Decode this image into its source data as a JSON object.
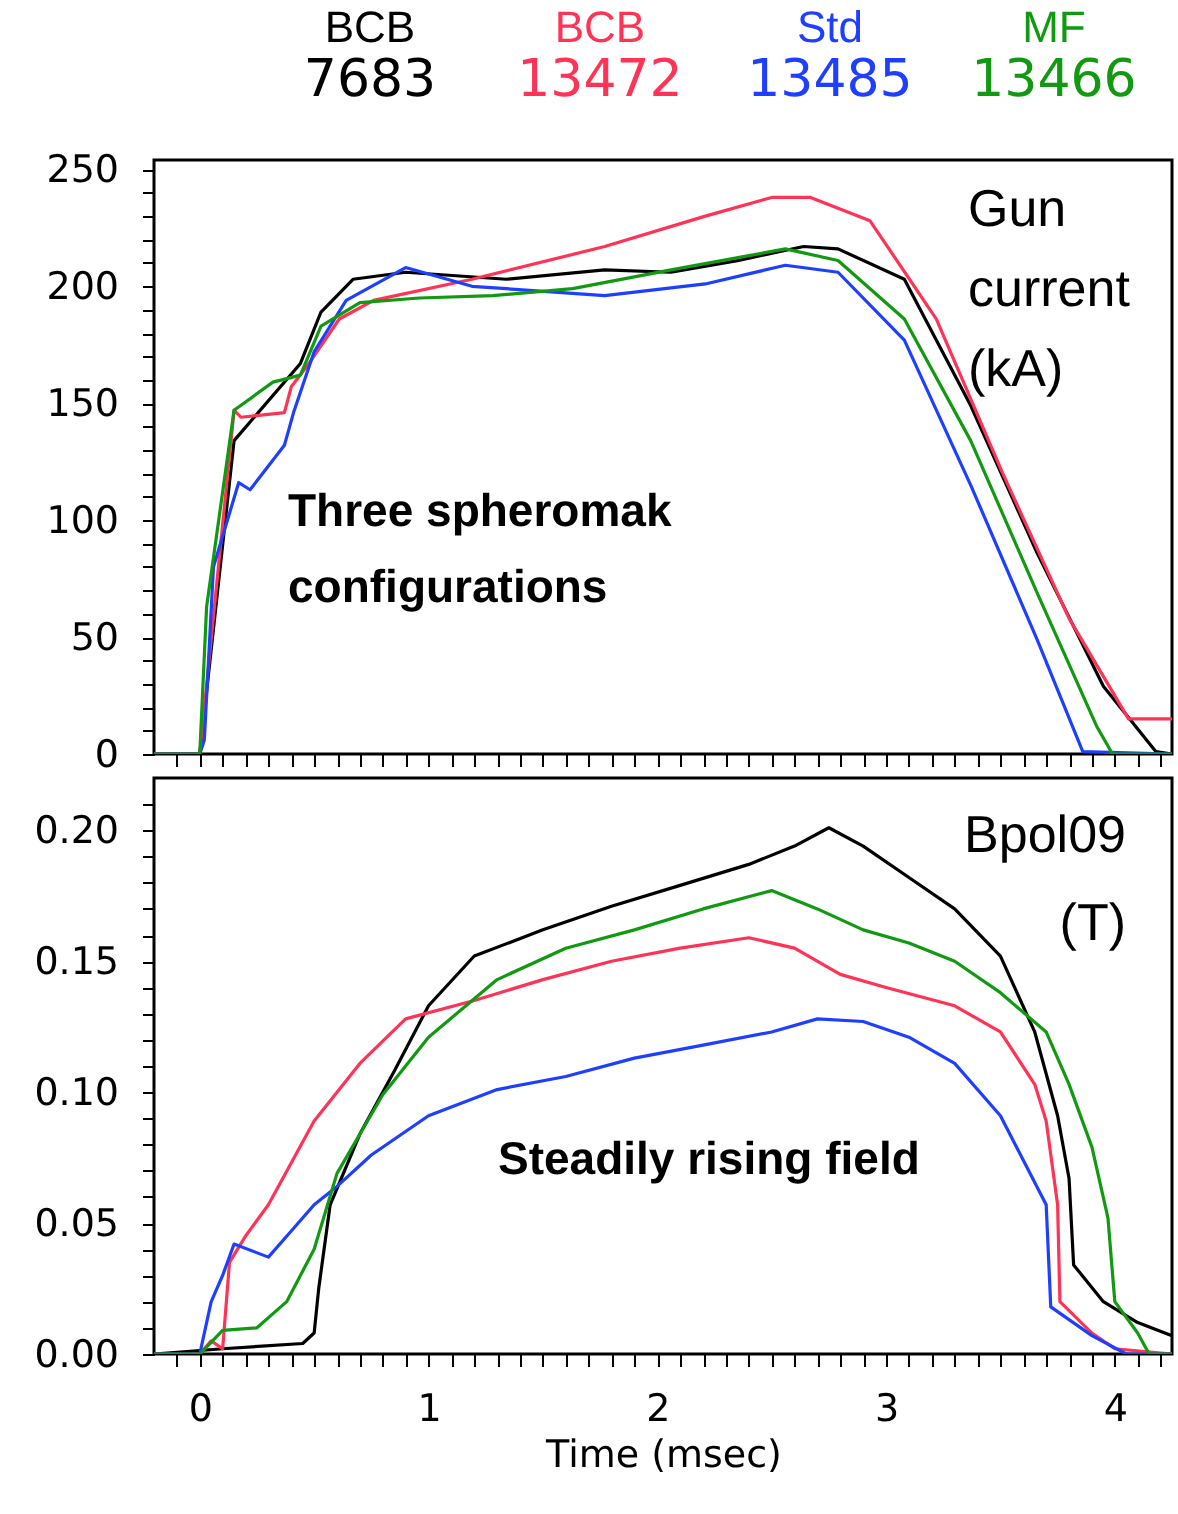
{
  "chart_data": [
    {
      "type": "line",
      "annotations": [
        "Gun\ncurrent\n(kA)",
        "Three spheromak\nconfigurations"
      ],
      "xlim": [
        -0.2,
        4.25
      ],
      "ylim": [
        0,
        254
      ],
      "tick_labels": "y",
      "line_style": "solid",
      "xticks": [
        {
          "value": -0.1,
          "label": null
        },
        {
          "value": 0,
          "label": null
        },
        {
          "value": 0.1,
          "label": null
        },
        {
          "value": 0.2,
          "label": null
        },
        {
          "value": 0.3,
          "label": null
        },
        {
          "value": 0.4,
          "label": null
        },
        {
          "value": 0.5,
          "label": null
        },
        {
          "value": 0.6,
          "label": null
        },
        {
          "value": 0.7,
          "label": null
        },
        {
          "value": 0.8,
          "label": null
        },
        {
          "value": 0.9,
          "label": null
        },
        {
          "value": 1,
          "label": null
        },
        {
          "value": 1.1,
          "label": null
        },
        {
          "value": 1.2,
          "label": null
        },
        {
          "value": 1.3,
          "label": null
        },
        {
          "value": 1.4,
          "label": null
        },
        {
          "value": 1.5,
          "label": null
        },
        {
          "value": 1.6,
          "label": null
        },
        {
          "value": 1.7,
          "label": null
        },
        {
          "value": 1.8,
          "label": null
        },
        {
          "value": 1.9,
          "label": null
        },
        {
          "value": 2,
          "label": null
        },
        {
          "value": 2.1,
          "label": null
        },
        {
          "value": 2.2,
          "label": null
        },
        {
          "value": 2.3,
          "label": null
        },
        {
          "value": 2.4,
          "label": null
        },
        {
          "value": 2.5,
          "label": null
        },
        {
          "value": 2.6,
          "label": null
        },
        {
          "value": 2.7,
          "label": null
        },
        {
          "value": 2.8,
          "label": null
        },
        {
          "value": 2.9,
          "label": null
        },
        {
          "value": 3,
          "label": null
        },
        {
          "value": 3.1,
          "label": null
        },
        {
          "value": 3.2,
          "label": null
        },
        {
          "value": 3.3,
          "label": null
        },
        {
          "value": 3.4,
          "label": null
        },
        {
          "value": 3.5,
          "label": null
        },
        {
          "value": 3.6,
          "label": null
        },
        {
          "value": 3.7,
          "label": null
        },
        {
          "value": 3.8,
          "label": null
        },
        {
          "value": 3.9,
          "label": null
        },
        {
          "value": 4,
          "label": null
        },
        {
          "value": 4.1,
          "label": null
        },
        {
          "value": 4.2,
          "label": null
        }
      ],
      "yticks": [
        0,
        {
          "value": 10,
          "label": null
        },
        {
          "value": 20,
          "label": null
        },
        {
          "value": 30,
          "label": null
        },
        {
          "value": 40,
          "label": null
        },
        50,
        {
          "value": 60,
          "label": null
        },
        {
          "value": 70,
          "label": null
        },
        {
          "value": 80,
          "label": null
        },
        {
          "value": 90,
          "label": null
        },
        100,
        {
          "value": 110,
          "label": null
        },
        {
          "value": 120,
          "label": null
        },
        {
          "value": 130,
          "label": null
        },
        {
          "value": 140,
          "label": null
        },
        150,
        {
          "value": 160,
          "label": null
        },
        {
          "value": 170,
          "label": null
        },
        {
          "value": 180,
          "label": null
        },
        {
          "value": 190,
          "label": null
        },
        200,
        {
          "value": 210,
          "label": null
        },
        {
          "value": 220,
          "label": null
        },
        {
          "value": 230,
          "label": null
        },
        {
          "value": 240,
          "label": null
        },
        250
      ],
      "series": [
        {
          "name": "BCB 7683",
          "color": "#000000",
          "x": [
            -0.2,
            0,
            0.15,
            0.44,
            0.53,
            0.67,
            0.9,
            1.34,
            1.77,
            2.06,
            2.35,
            2.64,
            2.79,
            3.08,
            3.37,
            3.66,
            3.95,
            4.18,
            4.25
          ],
          "values": [
            0,
            0,
            134,
            167,
            189,
            203,
            206,
            203,
            207,
            206,
            211,
            217,
            216,
            203,
            149,
            86,
            29,
            1,
            0
          ]
        },
        {
          "name": "BCB 13472",
          "color": "#ff3355",
          "x": [
            -0.2,
            0,
            0.15,
            0.18,
            0.37,
            0.4,
            0.47,
            0.61,
            0.76,
            1.19,
            1.77,
            2.21,
            2.5,
            2.67,
            2.93,
            3.22,
            3.51,
            3.8,
            4.06,
            4.25
          ],
          "values": [
            0,
            0,
            147,
            144,
            146,
            157,
            166,
            186,
            194,
            203,
            217,
            230,
            238,
            238,
            228,
            186,
            120,
            58,
            15,
            15
          ]
        },
        {
          "name": "Std 13485",
          "color": "#1f3fff",
          "x": [
            -0.2,
            0,
            0.02,
            0.06,
            0.17,
            0.22,
            0.37,
            0.41,
            0.5,
            0.64,
            0.9,
            1.19,
            1.77,
            2.21,
            2.56,
            2.79,
            3.08,
            3.37,
            3.66,
            3.86,
            4.25
          ],
          "values": [
            0,
            0,
            6,
            80,
            116,
            113,
            132,
            146,
            172,
            194,
            208,
            200,
            196,
            201,
            209,
            206,
            177,
            115,
            49,
            1,
            0
          ]
        },
        {
          "name": "MF 13466",
          "color": "#119911",
          "x": [
            -0.2,
            0,
            0.03,
            0.15,
            0.32,
            0.44,
            0.53,
            0.7,
            0.96,
            1.28,
            1.63,
            2.06,
            2.56,
            2.79,
            3.08,
            3.37,
            3.66,
            3.92,
            3.99,
            4.25
          ],
          "values": [
            0,
            0,
            63,
            147,
            159,
            162,
            183,
            193,
            195,
            196,
            199,
            207,
            216,
            211,
            186,
            134,
            69,
            12,
            0,
            0
          ]
        }
      ]
    },
    {
      "type": "line",
      "annotations": [
        "Bpol09\n(T)",
        "Steadily rising field"
      ],
      "xlabel": "Time (msec)",
      "xlim": [
        -0.2,
        4.25
      ],
      "ylim": [
        0,
        0.22
      ],
      "line_style": "solid",
      "xticks": [
        {
          "value": -0.1,
          "label": null
        },
        {
          "value": 0,
          "label": "0"
        },
        {
          "value": 0.1,
          "label": null
        },
        {
          "value": 0.2,
          "label": null
        },
        {
          "value": 0.3,
          "label": null
        },
        {
          "value": 0.4,
          "label": null
        },
        {
          "value": 0.5,
          "label": null
        },
        {
          "value": 0.6,
          "label": null
        },
        {
          "value": 0.7,
          "label": null
        },
        {
          "value": 0.8,
          "label": null
        },
        {
          "value": 0.9,
          "label": null
        },
        {
          "value": 1,
          "label": "1"
        },
        {
          "value": 1.1,
          "label": null
        },
        {
          "value": 1.2,
          "label": null
        },
        {
          "value": 1.3,
          "label": null
        },
        {
          "value": 1.4,
          "label": null
        },
        {
          "value": 1.5,
          "label": null
        },
        {
          "value": 1.6,
          "label": null
        },
        {
          "value": 1.7,
          "label": null
        },
        {
          "value": 1.8,
          "label": null
        },
        {
          "value": 1.9,
          "label": null
        },
        {
          "value": 2,
          "label": "2"
        },
        {
          "value": 2.1,
          "label": null
        },
        {
          "value": 2.2,
          "label": null
        },
        {
          "value": 2.3,
          "label": null
        },
        {
          "value": 2.4,
          "label": null
        },
        {
          "value": 2.5,
          "label": null
        },
        {
          "value": 2.6,
          "label": null
        },
        {
          "value": 2.7,
          "label": null
        },
        {
          "value": 2.8,
          "label": null
        },
        {
          "value": 2.9,
          "label": null
        },
        {
          "value": 3,
          "label": "3"
        },
        {
          "value": 3.1,
          "label": null
        },
        {
          "value": 3.2,
          "label": null
        },
        {
          "value": 3.3,
          "label": null
        },
        {
          "value": 3.4,
          "label": null
        },
        {
          "value": 3.5,
          "label": null
        },
        {
          "value": 3.6,
          "label": null
        },
        {
          "value": 3.7,
          "label": null
        },
        {
          "value": 3.8,
          "label": null
        },
        {
          "value": 3.9,
          "label": null
        },
        {
          "value": 4,
          "label": "4"
        },
        {
          "value": 4.1,
          "label": null
        },
        {
          "value": 4.2,
          "label": null
        }
      ],
      "yticks": [
        {
          "value": 0,
          "label": "0.00"
        },
        {
          "value": 0.01,
          "label": null
        },
        {
          "value": 0.02,
          "label": null
        },
        {
          "value": 0.03,
          "label": null
        },
        {
          "value": 0.04,
          "label": null
        },
        0.05,
        {
          "value": 0.06,
          "label": null
        },
        {
          "value": 0.07,
          "label": null
        },
        {
          "value": 0.08,
          "label": null
        },
        {
          "value": 0.09,
          "label": null
        },
        {
          "value": 0.1,
          "label": "0.10"
        },
        {
          "value": 0.11,
          "label": null
        },
        {
          "value": 0.12,
          "label": null
        },
        {
          "value": 0.13,
          "label": null
        },
        {
          "value": 0.14,
          "label": null
        },
        0.15,
        {
          "value": 0.16,
          "label": null
        },
        {
          "value": 0.17,
          "label": null
        },
        {
          "value": 0.18,
          "label": null
        },
        {
          "value": 0.19,
          "label": null
        },
        {
          "value": 0.2,
          "label": "0.20"
        },
        {
          "value": 0.21,
          "label": null
        }
      ],
      "series": [
        {
          "color": "#000000",
          "x": [
            -0.2,
            0.1,
            0.45,
            0.5,
            0.52,
            0.57,
            0.7,
            0.85,
            1,
            1.2,
            1.5,
            1.8,
            2.1,
            2.4,
            2.6,
            2.75,
            2.9,
            3.1,
            3.3,
            3.5,
            3.65,
            3.75,
            3.8,
            3.82,
            3.95,
            4.1,
            4.25
          ],
          "values": [
            0,
            0.002,
            0.004,
            0.008,
            0.025,
            0.057,
            0.084,
            0.108,
            0.133,
            0.152,
            0.162,
            0.171,
            0.179,
            0.187,
            0.194,
            0.201,
            0.194,
            0.182,
            0.17,
            0.152,
            0.123,
            0.091,
            0.067,
            0.034,
            0.02,
            0.012,
            0.007
          ]
        },
        {
          "color": "#ff3355",
          "x": [
            -0.2,
            0,
            0.05,
            0.1,
            0.13,
            0.2,
            0.3,
            0.5,
            0.7,
            0.9,
            1.2,
            1.5,
            1.8,
            2.1,
            2.4,
            2.6,
            2.8,
            3,
            3.3,
            3.5,
            3.65,
            3.7,
            3.75,
            3.76,
            3.9,
            4,
            4.25
          ],
          "values": [
            0,
            0,
            0.005,
            0.002,
            0.035,
            0.045,
            0.057,
            0.089,
            0.111,
            0.128,
            0.135,
            0.143,
            0.15,
            0.155,
            0.159,
            0.155,
            0.145,
            0.14,
            0.133,
            0.123,
            0.103,
            0.089,
            0.057,
            0.02,
            0.008,
            0.002,
            0
          ]
        },
        {
          "color": "#1f3fff",
          "x": [
            -0.2,
            0,
            0.05,
            0.1,
            0.15,
            0.3,
            0.4,
            0.5,
            0.6,
            0.75,
            1,
            1.3,
            1.6,
            1.9,
            2.2,
            2.5,
            2.7,
            2.9,
            3.1,
            3.3,
            3.5,
            3.6,
            3.7,
            3.72,
            3.9,
            4.05,
            4.25
          ],
          "values": [
            0,
            0,
            0.02,
            0.03,
            0.042,
            0.037,
            0.047,
            0.057,
            0.064,
            0.076,
            0.091,
            0.101,
            0.106,
            0.113,
            0.118,
            0.123,
            0.128,
            0.127,
            0.121,
            0.111,
            0.091,
            0.074,
            0.057,
            0.018,
            0.007,
            0,
            0
          ]
        },
        {
          "color": "#119911",
          "x": [
            -0.2,
            0,
            0.1,
            0.25,
            0.38,
            0.5,
            0.6,
            0.8,
            1,
            1.3,
            1.6,
            1.9,
            2.2,
            2.5,
            2.7,
            2.9,
            3.1,
            3.3,
            3.5,
            3.7,
            3.8,
            3.9,
            3.97,
            4,
            4.1,
            4.15,
            4.25
          ],
          "values": [
            0,
            0,
            0.009,
            0.01,
            0.02,
            0.04,
            0.069,
            0.099,
            0.121,
            0.143,
            0.155,
            0.162,
            0.17,
            0.177,
            0.17,
            0.162,
            0.157,
            0.15,
            0.138,
            0.123,
            0.103,
            0.079,
            0.052,
            0.02,
            0.008,
            0,
            0
          ]
        }
      ]
    }
  ]
}
